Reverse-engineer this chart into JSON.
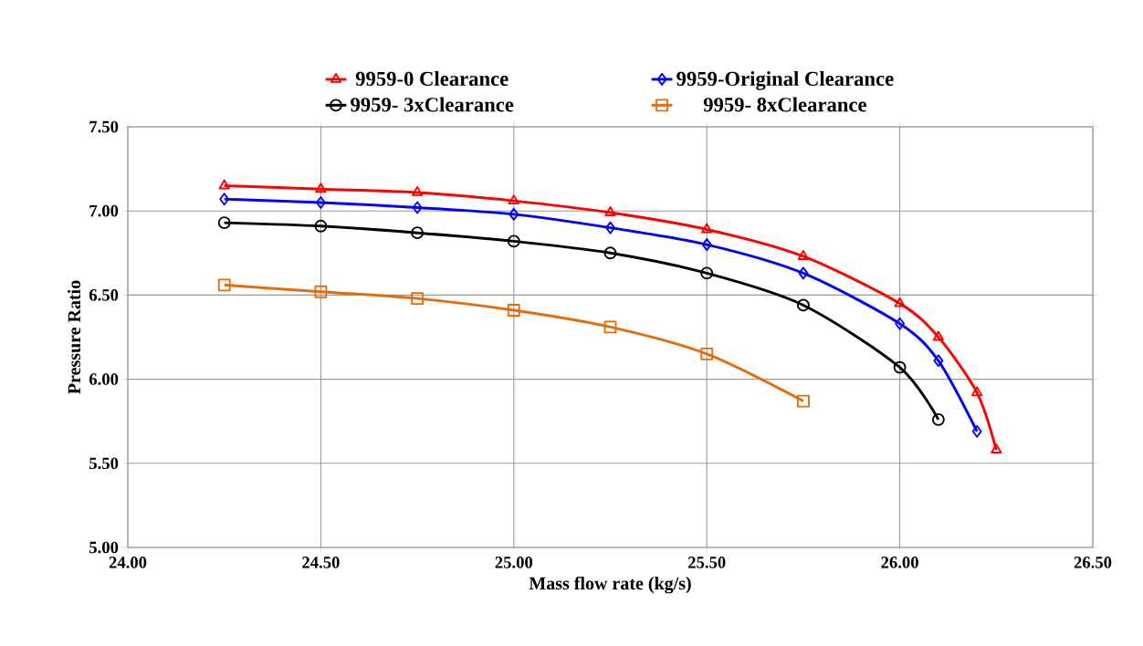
{
  "chart_data": {
    "type": "line",
    "xlabel": "Mass flow rate (kg/s)",
    "ylabel": "Pressure Ratio",
    "xlim": [
      24.0,
      26.5
    ],
    "ylim": [
      5.0,
      7.5
    ],
    "xticks": [
      {
        "value": 24.0,
        "label": "24.00"
      },
      {
        "value": 24.5,
        "label": "24.50"
      },
      {
        "value": 25.0,
        "label": "25.00"
      },
      {
        "value": 25.5,
        "label": "25.50"
      },
      {
        "value": 26.0,
        "label": "26.00"
      },
      {
        "value": 26.5,
        "label": "26.50"
      }
    ],
    "yticks": [
      {
        "value": 5.0,
        "label": "5.00"
      },
      {
        "value": 5.5,
        "label": "5.50"
      },
      {
        "value": 6.0,
        "label": "6.00"
      },
      {
        "value": 6.5,
        "label": "6.50"
      },
      {
        "value": 7.0,
        "label": "7.00"
      },
      {
        "value": 7.5,
        "label": "7.50"
      }
    ],
    "grid": true,
    "legend": "top",
    "series": [
      {
        "name": "9959-0 Clearance",
        "color": "#ff0000",
        "marker": "triangle",
        "x": [
          24.25,
          24.5,
          24.75,
          25.0,
          25.25,
          25.5,
          25.75,
          26.0,
          26.1,
          26.2,
          26.25
        ],
        "values": [
          7.15,
          7.13,
          7.11,
          7.06,
          6.99,
          6.89,
          6.73,
          6.45,
          6.25,
          5.92,
          5.58
        ]
      },
      {
        "name": "9959-Original Clearance",
        "color": "#0000ff",
        "marker": "diamond",
        "x": [
          24.25,
          24.5,
          24.75,
          25.0,
          25.25,
          25.5,
          25.75,
          26.0,
          26.1,
          26.2
        ],
        "values": [
          7.07,
          7.05,
          7.02,
          6.98,
          6.9,
          6.8,
          6.63,
          6.33,
          6.11,
          5.69
        ]
      },
      {
        "name": "9959- 3xClearance",
        "color": "#000000",
        "marker": "circle",
        "x": [
          24.25,
          24.5,
          24.75,
          25.0,
          25.25,
          25.5,
          25.75,
          26.0,
          26.1
        ],
        "values": [
          6.93,
          6.91,
          6.87,
          6.82,
          6.75,
          6.63,
          6.44,
          6.07,
          5.76
        ]
      },
      {
        "name": "9959- 8xClearance",
        "color": "#e46c0a",
        "marker": "square",
        "x": [
          24.25,
          24.5,
          24.75,
          25.0,
          25.25,
          25.5,
          25.75
        ],
        "values": [
          6.56,
          6.52,
          6.48,
          6.41,
          6.31,
          6.15,
          5.87
        ]
      }
    ]
  }
}
